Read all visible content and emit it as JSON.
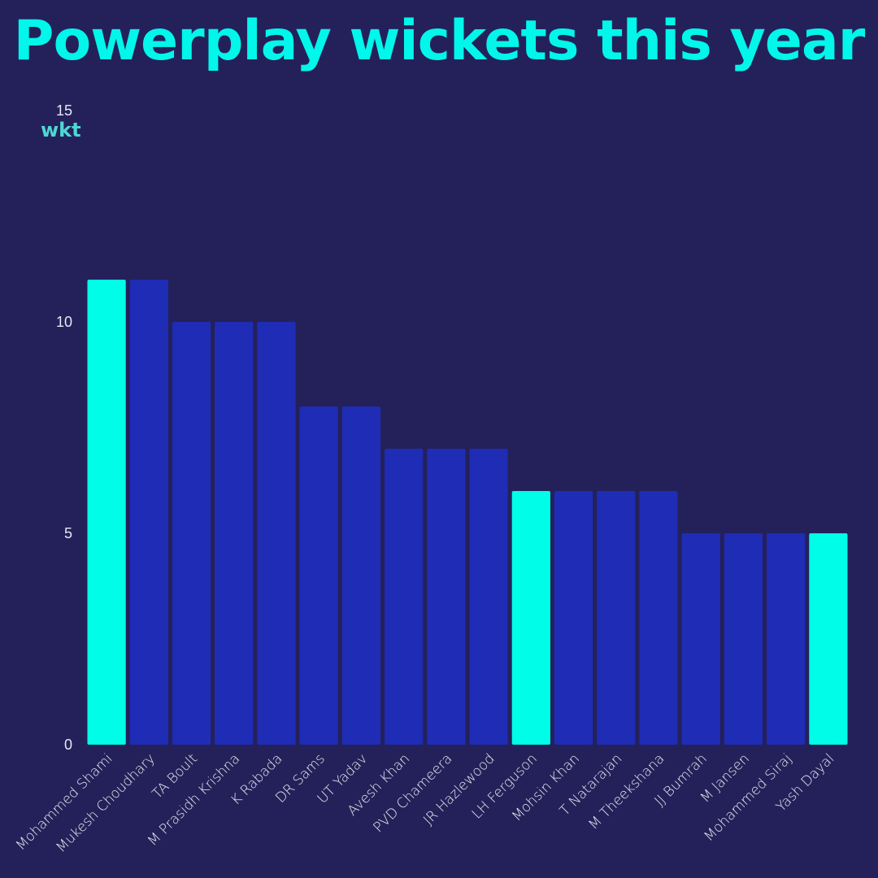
{
  "chart_data": {
    "type": "bar",
    "title": "Powerplay wickets this year",
    "ylabel": "wkt",
    "xlabel": "",
    "ylim": [
      0,
      15
    ],
    "yticks": [
      0,
      5,
      10,
      15
    ],
    "categories": [
      "Mohammed Shami",
      "Mukesh Choudhary",
      "TA Boult",
      "M Prasidh Krishna",
      "K Rabada",
      "DR Sams",
      "UT Yadav",
      "Avesh Khan",
      "PVD Chameera",
      "JR Hazlewood",
      "LH Ferguson",
      "Mohsin Khan",
      "T Natarajan",
      "M Theekshana",
      "JJ Bumrah",
      "M Jansen",
      "Mohammed Siraj",
      "Yash Dayal"
    ],
    "values": [
      11,
      11,
      10,
      10,
      10,
      8,
      8,
      7,
      7,
      7,
      6,
      6,
      6,
      6,
      5,
      5,
      5,
      5
    ],
    "highlighted": [
      true,
      false,
      false,
      false,
      false,
      false,
      false,
      false,
      false,
      false,
      true,
      false,
      false,
      false,
      false,
      false,
      false,
      true
    ],
    "grid": false
  },
  "colors": {
    "background": "#24215a",
    "bar": "#1f2cb5",
    "highlight": "#00fde8",
    "title": "#00f7ea",
    "unit": "#4fd6d3",
    "text": "#e8e8f0"
  }
}
